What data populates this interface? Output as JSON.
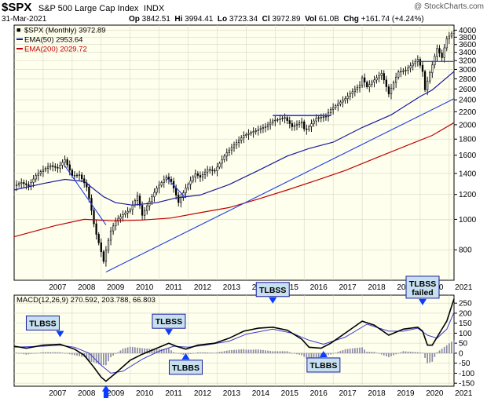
{
  "header": {
    "symbol": "$SPX",
    "name": "S&P 500 Large Cap Index",
    "exchange": "INDX",
    "date": "31-Mar-2021",
    "watermark": "@ StockCharts.com",
    "quote": {
      "op_label": "Op",
      "op": "3842.51",
      "hi_label": "Hi",
      "hi": "3994.41",
      "lo_label": "Lo",
      "lo": "3723.34",
      "cl_label": "Cl",
      "cl": "3972.89",
      "vol_label": "Vol",
      "vol": "61.0B",
      "chg_label": "Chg",
      "chg": "+161.74 (+4.24%)"
    }
  },
  "colors": {
    "price": "#000000",
    "ema50": "#1a1a9c",
    "ema200": "#c00000",
    "trendline": "#1f3fe0",
    "plot_bg": "#ffffee",
    "macd_line": "#000000",
    "signal_line": "#3a3ad0",
    "histogram": "#8a8aa8",
    "callout_fill": "#c7e0f0",
    "callout_border": "#1a1a9c",
    "arrow": "#0a3cff"
  },
  "chart_data": [
    {
      "type": "candlestick",
      "title": "$SPX (Monthly) 3972.89",
      "scale": "log",
      "x_start": "2006-01",
      "x_end": "2021-03",
      "xticks": [
        "2007",
        "2008",
        "2009",
        "2010",
        "2011",
        "2012",
        "2013",
        "2014",
        "2015",
        "2016",
        "2017",
        "2018",
        "2019",
        "2020",
        "2021"
      ],
      "ylim": [
        640,
        4150
      ],
      "yticks": [
        4000,
        3800,
        3600,
        3400,
        3200,
        3000,
        2800,
        2600,
        2400,
        2200,
        2000,
        1800,
        1600,
        1400,
        1200,
        1000,
        800
      ],
      "legend": [
        {
          "label": "$SPX (Monthly) 3972.89",
          "color": "#000000"
        },
        {
          "label": "EMA(50) 2953.64",
          "color": "#1a1a9c"
        },
        {
          "label": "EMA(200) 2029.72",
          "color": "#c00000"
        }
      ],
      "close": [
        [
          "2006-01",
          1280
        ],
        [
          "2006-04",
          1310
        ],
        [
          "2006-07",
          1276
        ],
        [
          "2006-10",
          1378
        ],
        [
          "2007-01",
          1438
        ],
        [
          "2007-04",
          1482
        ],
        [
          "2007-07",
          1455
        ],
        [
          "2007-10",
          1549
        ],
        [
          "2008-01",
          1378
        ],
        [
          "2008-04",
          1385
        ],
        [
          "2008-07",
          1267
        ],
        [
          "2008-10",
          968
        ],
        [
          "2008-11",
          896
        ],
        [
          "2009-02",
          735
        ],
        [
          "2009-03",
          797
        ],
        [
          "2009-05",
          919
        ],
        [
          "2009-07",
          987
        ],
        [
          "2009-10",
          1036
        ],
        [
          "2010-01",
          1073
        ],
        [
          "2010-04",
          1186
        ],
        [
          "2010-06",
          1030
        ],
        [
          "2010-09",
          1141
        ],
        [
          "2010-12",
          1257
        ],
        [
          "2011-04",
          1363
        ],
        [
          "2011-06",
          1320
        ],
        [
          "2011-09",
          1131
        ],
        [
          "2011-12",
          1257
        ],
        [
          "2012-04",
          1397
        ],
        [
          "2012-06",
          1362
        ],
        [
          "2012-09",
          1440
        ],
        [
          "2012-12",
          1426
        ],
        [
          "2013-05",
          1630
        ],
        [
          "2013-12",
          1848
        ],
        [
          "2014-09",
          1972
        ],
        [
          "2014-12",
          2058
        ],
        [
          "2015-05",
          2107
        ],
        [
          "2015-08",
          1972
        ],
        [
          "2015-12",
          2043
        ],
        [
          "2016-01",
          1940
        ],
        [
          "2016-02",
          1932
        ],
        [
          "2016-06",
          2098
        ],
        [
          "2016-10",
          2126
        ],
        [
          "2016-12",
          2238
        ],
        [
          "2017-06",
          2423
        ],
        [
          "2017-12",
          2673
        ],
        [
          "2018-01",
          2823
        ],
        [
          "2018-03",
          2640
        ],
        [
          "2018-09",
          2913
        ],
        [
          "2018-12",
          2506
        ],
        [
          "2019-04",
          2945
        ],
        [
          "2019-07",
          2980
        ],
        [
          "2019-12",
          3230
        ],
        [
          "2020-02",
          2954
        ],
        [
          "2020-03",
          2584
        ],
        [
          "2020-06",
          3100
        ],
        [
          "2020-08",
          3500
        ],
        [
          "2020-10",
          3269
        ],
        [
          "2020-12",
          3756
        ],
        [
          "2021-03",
          3973
        ]
      ],
      "ema50": [
        [
          "2006-01",
          1240
        ],
        [
          "2007-01",
          1300
        ],
        [
          "2007-10",
          1340
        ],
        [
          "2008-06",
          1320
        ],
        [
          "2009-02",
          1180
        ],
        [
          "2009-07",
          1130
        ],
        [
          "2010-02",
          1110
        ],
        [
          "2010-12",
          1130
        ],
        [
          "2011-08",
          1170
        ],
        [
          "2012-06",
          1195
        ],
        [
          "2013-06",
          1290
        ],
        [
          "2014-06",
          1430
        ],
        [
          "2015-06",
          1590
        ],
        [
          "2016-03",
          1680
        ],
        [
          "2017-01",
          1760
        ],
        [
          "2018-01",
          1960
        ],
        [
          "2019-01",
          2150
        ],
        [
          "2020-01",
          2460
        ],
        [
          "2020-06",
          2580
        ],
        [
          "2021-03",
          2954
        ]
      ],
      "ema200": [
        [
          "2006-01",
          880
        ],
        [
          "2007-06",
          955
        ],
        [
          "2008-06",
          1000
        ],
        [
          "2009-06",
          990
        ],
        [
          "2010-06",
          995
        ],
        [
          "2011-06",
          1010
        ],
        [
          "2012-06",
          1050
        ],
        [
          "2013-06",
          1090
        ],
        [
          "2014-06",
          1160
        ],
        [
          "2015-06",
          1240
        ],
        [
          "2016-06",
          1330
        ],
        [
          "2017-06",
          1430
        ],
        [
          "2018-06",
          1560
        ],
        [
          "2019-06",
          1700
        ],
        [
          "2020-06",
          1850
        ],
        [
          "2021-03",
          2030
        ]
      ],
      "trendlines": [
        {
          "from": [
            "2009-03",
            680
          ],
          "to": [
            "2021-03",
            2420
          ]
        },
        {
          "from": [
            "2014-12",
            2140
          ],
          "to": [
            "2016-12",
            2140
          ]
        },
        {
          "from": [
            "2019-12",
            3180
          ],
          "to": [
            "2021-03",
            3180
          ]
        },
        {
          "from": [
            "2007-10",
            1480
          ],
          "to": [
            "2009-03",
            960
          ]
        },
        {
          "from": [
            "2011-04",
            1360
          ],
          "to": [
            "2011-12",
            1170
          ]
        }
      ]
    },
    {
      "type": "line",
      "title": "MACD(12,26,9) 270.592, 203.788, 66.803",
      "x_start": "2006-01",
      "x_end": "2021-03",
      "xticks": [
        "2007",
        "2008",
        "2009",
        "2010",
        "2011",
        "2012",
        "2013",
        "2014",
        "2015",
        "2016",
        "2017",
        "2018",
        "2019",
        "2020",
        "2021"
      ],
      "ylim": [
        -165,
        290
      ],
      "yticks": [
        250,
        200,
        150,
        100,
        50,
        0,
        -50,
        -100,
        -150
      ],
      "legend": [
        {
          "label": "MACD(12,26,9) 270.592, 203.788, 66.803",
          "color": "#000000"
        }
      ],
      "macd": [
        [
          "2006-01",
          35
        ],
        [
          "2006-06",
          25
        ],
        [
          "2007-01",
          40
        ],
        [
          "2007-08",
          45
        ],
        [
          "2008-02",
          20
        ],
        [
          "2008-06",
          -10
        ],
        [
          "2008-10",
          -70
        ],
        [
          "2009-01",
          -120
        ],
        [
          "2009-03",
          -140
        ],
        [
          "2009-07",
          -100
        ],
        [
          "2010-01",
          -35
        ],
        [
          "2010-06",
          -5
        ],
        [
          "2010-12",
          25
        ],
        [
          "2011-05",
          50
        ],
        [
          "2011-08",
          35
        ],
        [
          "2011-12",
          20
        ],
        [
          "2012-05",
          40
        ],
        [
          "2012-12",
          50
        ],
        [
          "2013-06",
          75
        ],
        [
          "2013-12",
          110
        ],
        [
          "2014-06",
          125
        ],
        [
          "2014-12",
          130
        ],
        [
          "2015-06",
          115
        ],
        [
          "2015-12",
          70
        ],
        [
          "2016-03",
          30
        ],
        [
          "2016-08",
          25
        ],
        [
          "2016-12",
          50
        ],
        [
          "2017-06",
          100
        ],
        [
          "2018-01",
          160
        ],
        [
          "2018-06",
          140
        ],
        [
          "2018-12",
          90
        ],
        [
          "2019-06",
          120
        ],
        [
          "2019-12",
          130
        ],
        [
          "2020-02",
          110
        ],
        [
          "2020-04",
          40
        ],
        [
          "2020-06",
          40
        ],
        [
          "2020-09",
          100
        ],
        [
          "2020-12",
          160
        ],
        [
          "2021-03",
          271
        ]
      ],
      "signal": [
        [
          "2006-01",
          30
        ],
        [
          "2007-01",
          35
        ],
        [
          "2007-08",
          40
        ],
        [
          "2008-02",
          30
        ],
        [
          "2008-08",
          0
        ],
        [
          "2009-01",
          -60
        ],
        [
          "2009-05",
          -100
        ],
        [
          "2009-10",
          -90
        ],
        [
          "2010-06",
          -30
        ],
        [
          "2011-01",
          10
        ],
        [
          "2011-07",
          35
        ],
        [
          "2012-01",
          30
        ],
        [
          "2012-08",
          40
        ],
        [
          "2013-06",
          60
        ],
        [
          "2014-01",
          95
        ],
        [
          "2014-12",
          120
        ],
        [
          "2015-08",
          100
        ],
        [
          "2016-03",
          65
        ],
        [
          "2016-09",
          45
        ],
        [
          "2017-06",
          80
        ],
        [
          "2018-03",
          145
        ],
        [
          "2018-12",
          110
        ],
        [
          "2019-06",
          110
        ],
        [
          "2019-12",
          125
        ],
        [
          "2020-04",
          90
        ],
        [
          "2020-08",
          75
        ],
        [
          "2020-12",
          120
        ],
        [
          "2021-03",
          204
        ]
      ],
      "histogram_end": 67,
      "annotations": [
        {
          "text": "TLBSS",
          "date": "2007-08",
          "kind": "top"
        },
        {
          "text": "TLBSS",
          "date": "2011-05",
          "kind": "top"
        },
        {
          "text": "TLBSS",
          "date": "2014-12",
          "kind": "top"
        },
        {
          "text": "TLBSS failed",
          "date": "2020-02",
          "kind": "top"
        },
        {
          "text": "TLBBS",
          "date": "2009-03",
          "kind": "bottom"
        },
        {
          "text": "TLBBS",
          "date": "2011-12",
          "kind": "bottom"
        },
        {
          "text": "TLBBS",
          "date": "2016-09",
          "kind": "bottom"
        }
      ]
    }
  ]
}
